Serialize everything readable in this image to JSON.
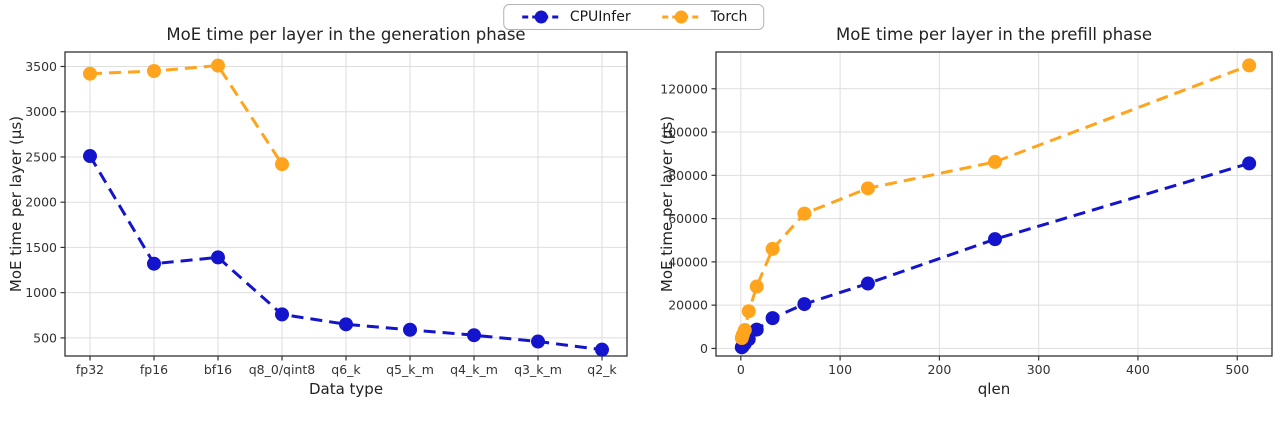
{
  "legend": {
    "items": [
      {
        "label": "CPUInfer",
        "color": "#1414cc"
      },
      {
        "label": "Torch",
        "color": "#ffa41c"
      }
    ]
  },
  "chart_data": [
    {
      "type": "line",
      "title": "MoE time per layer in the generation phase",
      "xlabel": "Data type",
      "ylabel": "MoE time per layer (μs)",
      "x_mode": "categorical",
      "categories": [
        "fp32",
        "fp16",
        "bf16",
        "q8_0/qint8",
        "q6_k",
        "q5_k_m",
        "q4_k_m",
        "q3_k_m",
        "q2_k"
      ],
      "yticks": [
        500,
        1000,
        1500,
        2000,
        2500,
        3000,
        3500
      ],
      "ylim": [
        300,
        3660
      ],
      "grid": true,
      "line_style": "dashed",
      "series": [
        {
          "name": "CPUInfer",
          "color": "#1414cc",
          "values": [
            2510,
            1320,
            1390,
            760,
            650,
            590,
            530,
            460,
            370
          ]
        },
        {
          "name": "Torch",
          "color": "#ffa41c",
          "values": [
            3420,
            3450,
            3510,
            2420,
            null,
            null,
            null,
            null,
            null
          ]
        }
      ]
    },
    {
      "type": "line",
      "title": "MoE time per layer in the prefill phase",
      "xlabel": "qlen",
      "ylabel": "MoE time per layer (μs)",
      "x_mode": "numeric",
      "x": [
        1,
        2,
        4,
        8,
        16,
        32,
        64,
        128,
        256,
        512
      ],
      "xticks": [
        0,
        100,
        200,
        300,
        400,
        500
      ],
      "xlim": [
        -25,
        535
      ],
      "yticks": [
        0,
        20000,
        40000,
        60000,
        80000,
        100000,
        120000
      ],
      "ylim": [
        -3500,
        137000
      ],
      "grid": true,
      "line_style": "dashed",
      "series": [
        {
          "name": "CPUInfer",
          "color": "#1414cc",
          "values": [
            500,
            1000,
            2200,
            4300,
            8700,
            14000,
            20500,
            30000,
            50500,
            85500
          ]
        },
        {
          "name": "Torch",
          "color": "#ffa41c",
          "values": [
            4800,
            6300,
            8500,
            17200,
            28600,
            46000,
            62300,
            74000,
            86200,
            130800
          ]
        }
      ]
    }
  ]
}
